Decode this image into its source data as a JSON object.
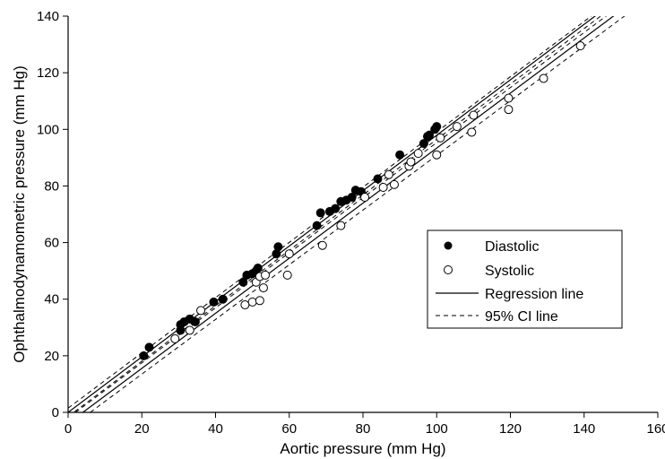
{
  "chart_data": {
    "type": "scatter",
    "xlabel": "Aortic pressure (mm Hg)",
    "ylabel": "Ophthalmodynamometric pressure (mm Hg)",
    "xlim": [
      0,
      160
    ],
    "ylim": [
      0,
      140
    ],
    "xticks": [
      "0",
      "20",
      "40",
      "60",
      "80",
      "100",
      "120",
      "140",
      "160"
    ],
    "yticks": [
      "0",
      "20",
      "40",
      "60",
      "80",
      "100",
      "120",
      "140"
    ],
    "grid": false,
    "legend_position": "center-right",
    "legend": [
      {
        "label": "Diastolic",
        "marker": "filled-circle"
      },
      {
        "label": "Systolic",
        "marker": "open-circle"
      },
      {
        "label": "Regression line",
        "marker": "solid-line"
      },
      {
        "label": "95% CI line",
        "marker": "dashed-line"
      }
    ],
    "series": [
      {
        "name": "Diastolic",
        "marker": "filled-circle",
        "points": [
          [
            20.5,
            20
          ],
          [
            22,
            23
          ],
          [
            30.5,
            29
          ],
          [
            30.5,
            31
          ],
          [
            31.5,
            32
          ],
          [
            33,
            33
          ],
          [
            34.5,
            32
          ],
          [
            39.5,
            39
          ],
          [
            42,
            40
          ],
          [
            47.5,
            46
          ],
          [
            48.5,
            48.5
          ],
          [
            50,
            49
          ],
          [
            51,
            50
          ],
          [
            51.5,
            51
          ],
          [
            56.5,
            56
          ],
          [
            57,
            58.5
          ],
          [
            67.5,
            66
          ],
          [
            68.5,
            70.5
          ],
          [
            71,
            71
          ],
          [
            72.5,
            72
          ],
          [
            74,
            74.5
          ],
          [
            75.5,
            75
          ],
          [
            77,
            76
          ],
          [
            78,
            78.5
          ],
          [
            79.5,
            78
          ],
          [
            84,
            82.5
          ],
          [
            90,
            91
          ],
          [
            96.5,
            95
          ],
          [
            97.5,
            97.5
          ],
          [
            98,
            98
          ],
          [
            99.5,
            100
          ],
          [
            100,
            101
          ]
        ]
      },
      {
        "name": "Systolic",
        "marker": "open-circle",
        "points": [
          [
            29,
            26
          ],
          [
            33,
            29
          ],
          [
            36,
            36
          ],
          [
            48,
            38
          ],
          [
            50,
            39
          ],
          [
            51,
            46
          ],
          [
            52,
            39.5
          ],
          [
            52,
            48
          ],
          [
            53,
            44
          ],
          [
            53.5,
            48.5
          ],
          [
            59.5,
            48.5
          ],
          [
            60,
            56
          ],
          [
            69,
            59
          ],
          [
            74,
            66
          ],
          [
            80.5,
            76
          ],
          [
            85.5,
            79.5
          ],
          [
            87,
            84
          ],
          [
            88.5,
            80.5
          ],
          [
            92.5,
            87
          ],
          [
            93,
            88.5
          ],
          [
            95,
            91.5
          ],
          [
            100,
            91
          ],
          [
            101,
            97
          ],
          [
            105.5,
            101
          ],
          [
            109.5,
            99
          ],
          [
            110,
            105
          ],
          [
            119.5,
            111
          ],
          [
            119.5,
            107
          ],
          [
            129,
            118
          ],
          [
            139,
            129.5
          ]
        ]
      }
    ],
    "lines": [
      {
        "name": "Diastolic regression line",
        "style": "solid",
        "points": [
          [
            0,
            0
          ],
          [
            145,
            142
          ]
        ]
      },
      {
        "name": "Diastolic 95% CI line",
        "style": "dashed",
        "points": [
          [
            0,
            1.5
          ],
          [
            145,
            143
          ]
        ]
      },
      {
        "name": "Diastolic 95% CI line",
        "style": "dashed",
        "points": [
          [
            0,
            -1.5
          ],
          [
            145,
            140.5
          ]
        ]
      },
      {
        "name": "Systolic regression line",
        "style": "solid",
        "points": [
          [
            4,
            0
          ],
          [
            150,
            142
          ]
        ]
      },
      {
        "name": "Systolic 95% CI line",
        "style": "dashed",
        "points": [
          [
            2,
            0
          ],
          [
            148,
            142
          ]
        ]
      },
      {
        "name": "Systolic 95% CI line",
        "style": "dashed",
        "points": [
          [
            6,
            0
          ],
          [
            153,
            142
          ]
        ]
      }
    ]
  }
}
